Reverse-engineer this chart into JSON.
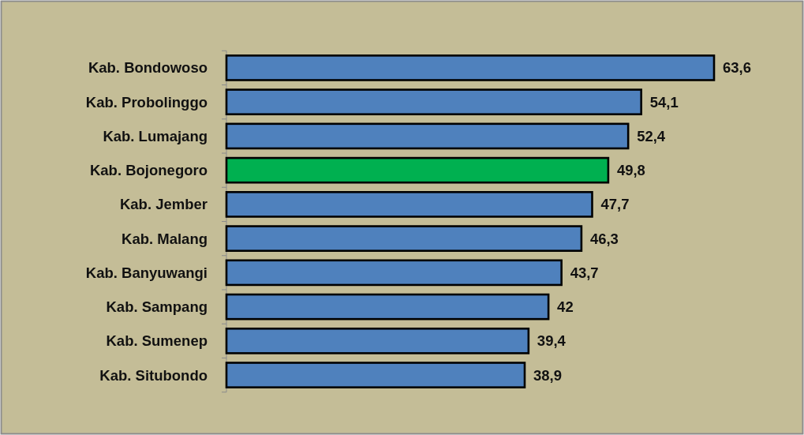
{
  "chart_data": {
    "type": "bar",
    "orientation": "horizontal",
    "categories": [
      "Kab. Bondowoso",
      "Kab. Probolinggo",
      "Kab. Lumajang",
      "Kab. Bojonegoro",
      "Kab. Jember",
      "Kab. Malang",
      "Kab. Banyuwangi",
      "Kab. Sampang",
      "Kab. Sumenep",
      "Kab. Situbondo"
    ],
    "values": [
      63.6,
      54.1,
      52.4,
      49.8,
      47.7,
      46.3,
      43.7,
      42,
      39.4,
      38.9
    ],
    "colors": [
      "#4f81bd",
      "#4f81bd",
      "#4f81bd",
      "#00b050",
      "#4f81bd",
      "#4f81bd",
      "#4f81bd",
      "#4f81bd",
      "#4f81bd",
      "#4f81bd"
    ],
    "value_labels": [
      "63,6",
      "54,1",
      "52,4",
      "49,8",
      "47,7",
      "46,3",
      "43,7",
      "42",
      "39,4",
      "38,9"
    ],
    "tick_labels": "y"
  }
}
